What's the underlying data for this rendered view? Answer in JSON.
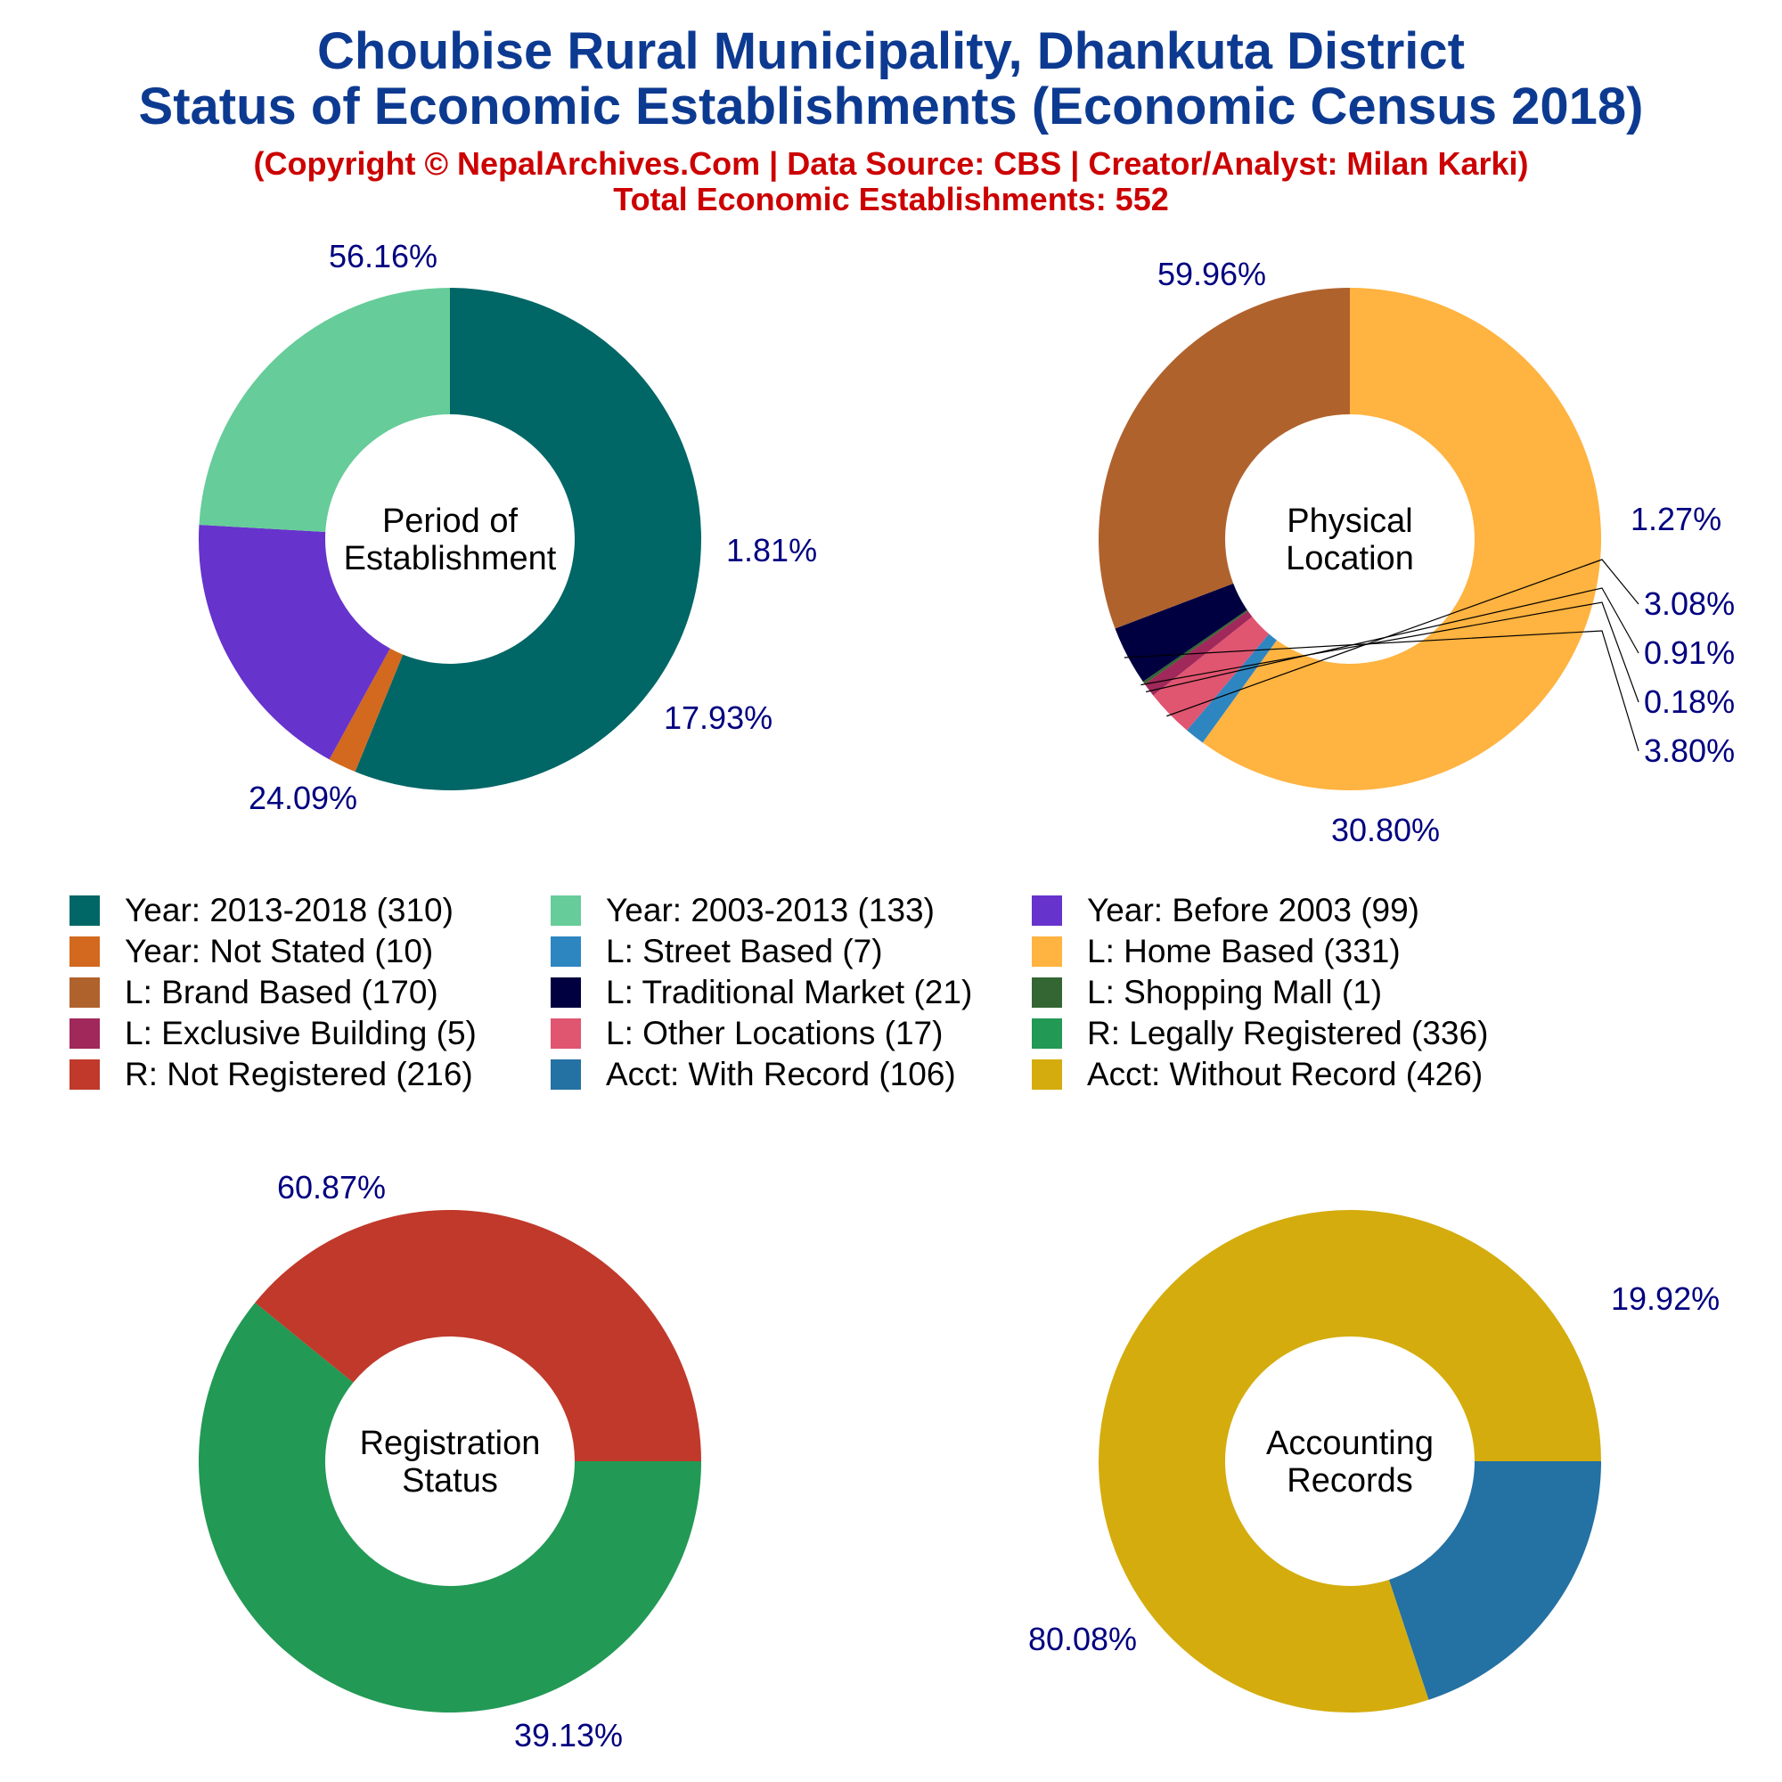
{
  "header": {
    "title_line1": "Choubise Rural Municipality, Dhankuta District",
    "title_line2": "Status of Economic Establishments (Economic Census 2018)",
    "subtitle_line1": "(Copyright © NepalArchives.Com | Data Source: CBS | Creator/Analyst: Milan Karki)",
    "subtitle_line2": "Total Economic Establishments: 552"
  },
  "colors": {
    "title": "#0d3a91",
    "subtitle": "#cc0000",
    "percent_label": "#000080"
  },
  "chart_data": [
    {
      "type": "pie",
      "donut": true,
      "center_label": [
        "Period of",
        "Establishment"
      ],
      "slices": [
        {
          "label": "Year: 2013-2018",
          "value": 310,
          "percent": "56.16%",
          "color": "#006666"
        },
        {
          "label": "Year: Not Stated",
          "value": 10,
          "percent": "1.81%",
          "color": "#d2691e"
        },
        {
          "label": "Year: Before 2003",
          "value": 99,
          "percent": "17.93%",
          "color": "#6633cc"
        },
        {
          "label": "Year: 2003-2013",
          "value": 133,
          "percent": "24.09%",
          "color": "#66cc99"
        }
      ]
    },
    {
      "type": "pie",
      "donut": true,
      "center_label": [
        "Physical",
        "Location"
      ],
      "slices": [
        {
          "label": "L: Home Based",
          "value": 331,
          "percent": "59.96%",
          "color": "#ffb340"
        },
        {
          "label": "L: Street Based",
          "value": 7,
          "percent": "1.27%",
          "color": "#2e86c1"
        },
        {
          "label": "L: Other Locations",
          "value": 17,
          "percent": "3.08%",
          "color": "#e05570"
        },
        {
          "label": "L: Exclusive Building",
          "value": 5,
          "percent": "0.91%",
          "color": "#a0285a"
        },
        {
          "label": "L: Shopping Mall",
          "value": 1,
          "percent": "0.18%",
          "color": "#336633"
        },
        {
          "label": "L: Traditional Market",
          "value": 21,
          "percent": "3.80%",
          "color": "#000040"
        },
        {
          "label": "L: Brand Based",
          "value": 170,
          "percent": "30.80%",
          "color": "#b0622d"
        }
      ]
    },
    {
      "type": "pie",
      "donut": true,
      "center_label": [
        "Registration",
        "Status"
      ],
      "slices": [
        {
          "label": "R: Legally Registered",
          "value": 336,
          "percent": "60.87%",
          "color": "#229955"
        },
        {
          "label": "R: Not Registered",
          "value": 216,
          "percent": "39.13%",
          "color": "#c0392b"
        }
      ]
    },
    {
      "type": "pie",
      "donut": true,
      "center_label": [
        "Accounting",
        "Records"
      ],
      "slices": [
        {
          "label": "Acct: With Record",
          "value": 106,
          "percent": "19.92%",
          "color": "#2471a3"
        },
        {
          "label": "Acct: Without Record",
          "value": 426,
          "percent": "80.08%",
          "color": "#d4ac0d"
        }
      ]
    }
  ],
  "legend": [
    {
      "label": "Year: 2013-2018 (310)",
      "color": "#006666"
    },
    {
      "label": "Year: 2003-2013 (133)",
      "color": "#66cc99"
    },
    {
      "label": "Year: Before 2003 (99)",
      "color": "#6633cc"
    },
    {
      "label": "Year: Not Stated (10)",
      "color": "#d2691e"
    },
    {
      "label": "L: Street Based (7)",
      "color": "#2e86c1"
    },
    {
      "label": "L: Home Based (331)",
      "color": "#ffb340"
    },
    {
      "label": "L: Brand Based (170)",
      "color": "#b0622d"
    },
    {
      "label": "L: Traditional Market (21)",
      "color": "#000040"
    },
    {
      "label": "L: Shopping Mall (1)",
      "color": "#336633"
    },
    {
      "label": "L: Exclusive Building (5)",
      "color": "#a0285a"
    },
    {
      "label": "L: Other Locations (17)",
      "color": "#e05570"
    },
    {
      "label": "R: Legally Registered (336)",
      "color": "#229955"
    },
    {
      "label": "R: Not Registered (216)",
      "color": "#c0392b"
    },
    {
      "label": "Acct: With Record (106)",
      "color": "#2471a3"
    },
    {
      "label": "Acct: Without Record (426)",
      "color": "#d4ac0d"
    }
  ]
}
